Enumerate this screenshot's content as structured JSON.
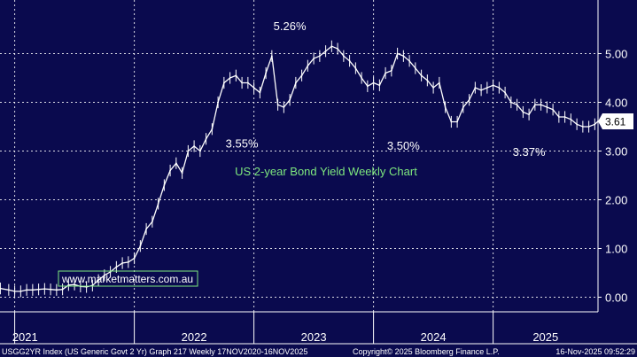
{
  "chart_data": {
    "type": "line",
    "title": "US 2-year Bond Yield Weekly Chart",
    "watermark": "www.marketmatters.com.au",
    "last_value": 3.61,
    "last_value_label": "3.61",
    "ylim": [
      -0.3,
      6.1
    ],
    "y_ticks": [
      0,
      1,
      2,
      3,
      4,
      5
    ],
    "y_tick_labels": [
      "0.00",
      "1.00",
      "2.00",
      "3.00",
      "4.00",
      "5.00"
    ],
    "year_labels": [
      "2021",
      "2022",
      "2023",
      "2024",
      "2025"
    ],
    "xlim": [
      2020.877,
      2025.877
    ],
    "year_boundaries": [
      2021.0,
      2022.0,
      2023.0,
      2024.0,
      2025.0
    ],
    "series": [
      {
        "name": "USGG2YR Index",
        "x": [
          2020.88,
          2020.95,
          2021.0,
          2021.05,
          2021.1,
          2021.15,
          2021.2,
          2021.25,
          2021.3,
          2021.35,
          2021.4,
          2021.45,
          2021.5,
          2021.55,
          2021.6,
          2021.65,
          2021.7,
          2021.75,
          2021.8,
          2021.85,
          2021.9,
          2021.95,
          2022.0,
          2022.05,
          2022.1,
          2022.15,
          2022.2,
          2022.25,
          2022.3,
          2022.35,
          2022.4,
          2022.45,
          2022.5,
          2022.55,
          2022.6,
          2022.65,
          2022.7,
          2022.75,
          2022.8,
          2022.85,
          2022.9,
          2022.95,
          2023.0,
          2023.05,
          2023.1,
          2023.15,
          2023.2,
          2023.25,
          2023.3,
          2023.35,
          2023.4,
          2023.45,
          2023.5,
          2023.55,
          2023.6,
          2023.65,
          2023.7,
          2023.75,
          2023.8,
          2023.85,
          2023.9,
          2023.95,
          2024.0,
          2024.05,
          2024.1,
          2024.15,
          2024.2,
          2024.25,
          2024.3,
          2024.35,
          2024.4,
          2024.45,
          2024.5,
          2024.55,
          2024.6,
          2024.65,
          2024.7,
          2024.75,
          2024.8,
          2024.85,
          2024.9,
          2024.95,
          2025.0,
          2025.05,
          2025.1,
          2025.15,
          2025.2,
          2025.25,
          2025.3,
          2025.35,
          2025.4,
          2025.45,
          2025.5,
          2025.55,
          2025.6,
          2025.65,
          2025.7,
          2025.75,
          2025.8,
          2025.85,
          2025.877
        ],
        "y": [
          0.18,
          0.15,
          0.12,
          0.12,
          0.15,
          0.15,
          0.16,
          0.17,
          0.16,
          0.15,
          0.16,
          0.25,
          0.26,
          0.22,
          0.21,
          0.24,
          0.35,
          0.45,
          0.52,
          0.62,
          0.7,
          0.72,
          0.8,
          1.05,
          1.4,
          1.55,
          1.92,
          2.3,
          2.6,
          2.75,
          2.55,
          3.0,
          3.1,
          3.0,
          3.25,
          3.45,
          4.0,
          4.4,
          4.5,
          4.55,
          4.4,
          4.4,
          4.3,
          4.2,
          4.6,
          4.95,
          3.95,
          3.9,
          4.05,
          4.4,
          4.55,
          4.75,
          4.9,
          4.95,
          5.05,
          5.15,
          5.1,
          4.95,
          4.85,
          4.7,
          4.5,
          4.33,
          4.4,
          4.35,
          4.6,
          4.65,
          5.0,
          4.95,
          4.85,
          4.7,
          4.55,
          4.45,
          4.3,
          4.4,
          3.9,
          3.6,
          3.6,
          3.9,
          4.05,
          4.3,
          4.25,
          4.3,
          4.35,
          4.3,
          4.2,
          4.0,
          3.95,
          3.8,
          3.75,
          3.95,
          3.95,
          3.9,
          3.85,
          3.7,
          3.7,
          3.65,
          3.55,
          3.5,
          3.5,
          3.55,
          3.61
        ]
      }
    ],
    "annotations": [
      {
        "text": "5.26%",
        "x": 2023.3,
        "y": 5.26
      },
      {
        "text": "3.55%",
        "x": 2022.9,
        "y": 3.55
      },
      {
        "text": "3.50%",
        "x": 2024.25,
        "y": 3.5
      },
      {
        "text": "3.37%",
        "x": 2025.3,
        "y": 3.37
      }
    ],
    "colors": {
      "background": "#0a0a4e",
      "line": "#ffffff",
      "grid": "#ffffff",
      "title": "#7ee87e",
      "watermark_border": "#7ee87e",
      "last_box": "#ffffff"
    }
  },
  "footer": {
    "left": "USGG2YR Index (US Generic Govt 2 Yr) Graph 217 Weekly 17NOV2020-16NOV2025",
    "center": "Copyright© 2025 Bloomberg Finance L.P.",
    "right": "16-Nov-2025 09:52:29"
  }
}
